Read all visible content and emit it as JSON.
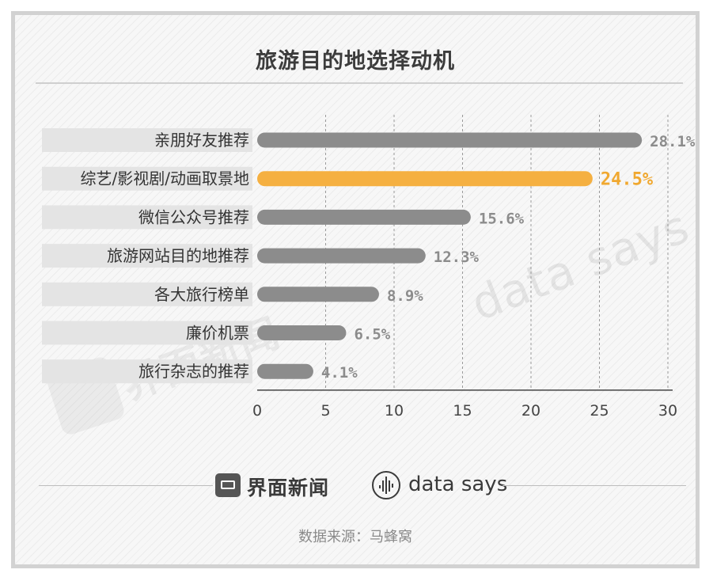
{
  "chart_data": {
    "type": "bar",
    "orientation": "horizontal",
    "title": "旅游目的地选择动机",
    "categories": [
      "亲朋好友推荐",
      "综艺/影视剧/动画取景地",
      "微信公众号推荐",
      "旅游网站目的地推荐",
      "各大旅行榜单",
      "廉价机票",
      "旅行杂志的推荐"
    ],
    "values": [
      28.1,
      24.5,
      15.6,
      12.3,
      8.9,
      6.5,
      4.1
    ],
    "value_labels": [
      "28.1%",
      "24.5%",
      "15.6%",
      "12.3%",
      "8.9%",
      "6.5%",
      "4.1%"
    ],
    "highlight_index": 1,
    "xlim": [
      0,
      30
    ],
    "xticks": [
      "0",
      "5",
      "10",
      "15",
      "20",
      "25",
      "30"
    ],
    "grid": "vertical dashed",
    "colors": {
      "bar": "#8c8c8c",
      "highlight": "#f5b041",
      "label_bg": "#e4e4e4",
      "value_text": "#8c8c8c",
      "highlight_text": "#f0a830",
      "tick_text": "#444444"
    }
  },
  "branding": {
    "jiemian": "界面新闻",
    "datasays": "data says",
    "watermark": "data says",
    "watermark_cn": "界面新闻"
  },
  "source": "数据来源：马蜂窝"
}
